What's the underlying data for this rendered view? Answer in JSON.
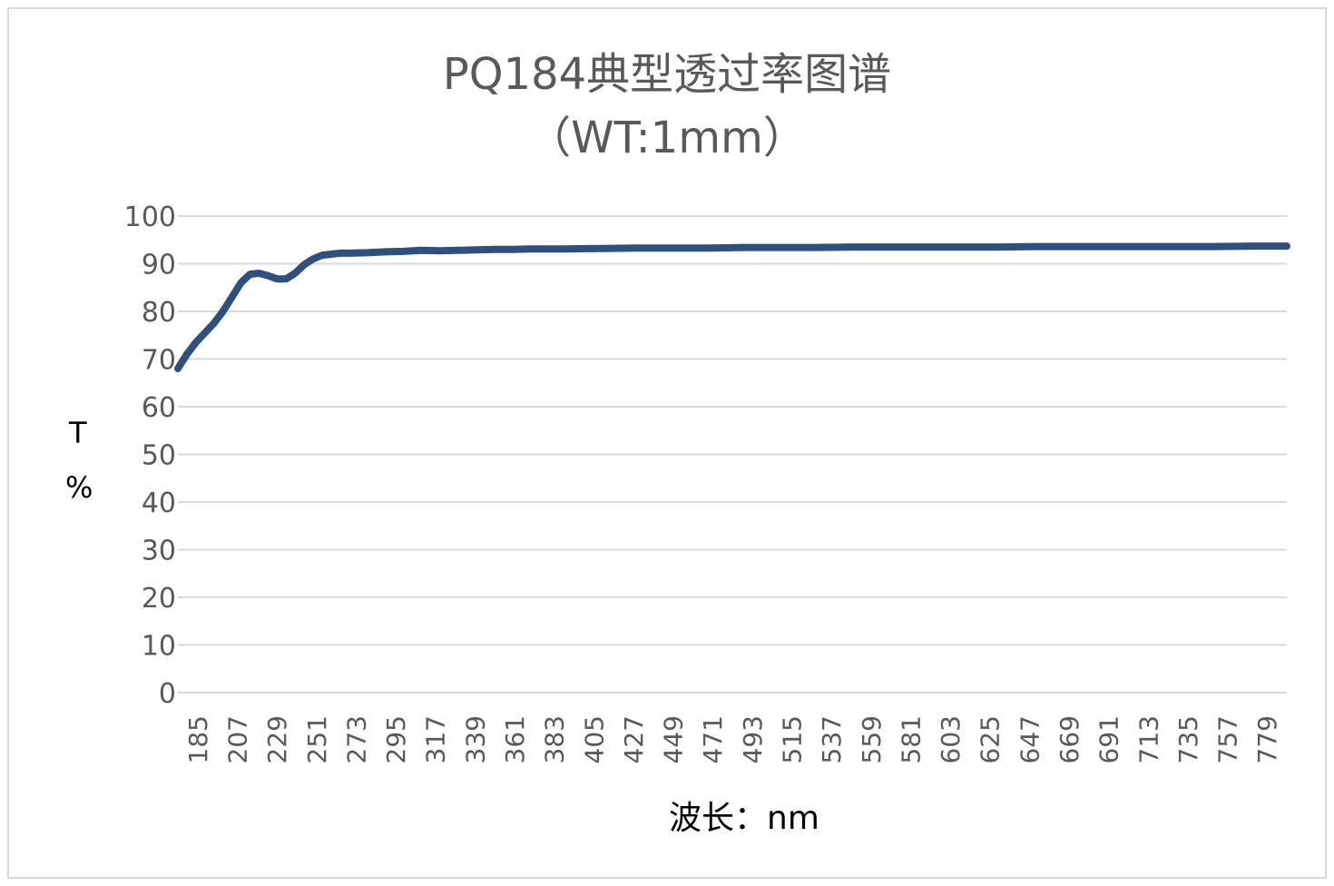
{
  "chart_data": {
    "type": "line",
    "title": "PQ184典型透过率图谱",
    "subtitle": "（WT:1mm）",
    "xlabel": "波长：nm",
    "ylabel": [
      "T",
      "%"
    ],
    "ylim": [
      0,
      100
    ],
    "ytick_step": 10,
    "grid": true,
    "line_color": "#2f4f7f",
    "x_ticks": [
      "185",
      "207",
      "229",
      "251",
      "273",
      "295",
      "317",
      "339",
      "361",
      "383",
      "405",
      "427",
      "449",
      "471",
      "493",
      "515",
      "537",
      "559",
      "581",
      "603",
      "625",
      "647",
      "669",
      "691",
      "713",
      "735",
      "757",
      "779"
    ],
    "x_range": [
      185,
      800
    ],
    "series": [
      {
        "x": [
          185,
          190,
          195,
          200,
          205,
          210,
          215,
          220,
          225,
          230,
          235,
          240,
          245,
          250,
          255,
          260,
          265,
          270,
          275,
          280,
          290,
          300,
          310,
          320,
          330,
          340,
          350,
          360,
          370,
          380,
          400,
          420,
          440,
          460,
          480,
          500,
          520,
          540,
          560,
          580,
          600,
          620,
          640,
          660,
          680,
          700,
          720,
          740,
          760,
          780,
          800
        ],
        "values": [
          68,
          71,
          73.5,
          75.5,
          77.5,
          80,
          83,
          86,
          87.8,
          88,
          87.5,
          86.8,
          86.8,
          88,
          89.8,
          91,
          91.8,
          92,
          92.2,
          92.2,
          92.3,
          92.5,
          92.6,
          92.8,
          92.7,
          92.8,
          92.9,
          93,
          93,
          93.1,
          93.1,
          93.2,
          93.3,
          93.3,
          93.3,
          93.4,
          93.4,
          93.4,
          93.5,
          93.5,
          93.5,
          93.5,
          93.5,
          93.6,
          93.6,
          93.6,
          93.6,
          93.6,
          93.6,
          93.7,
          93.7
        ]
      }
    ]
  }
}
